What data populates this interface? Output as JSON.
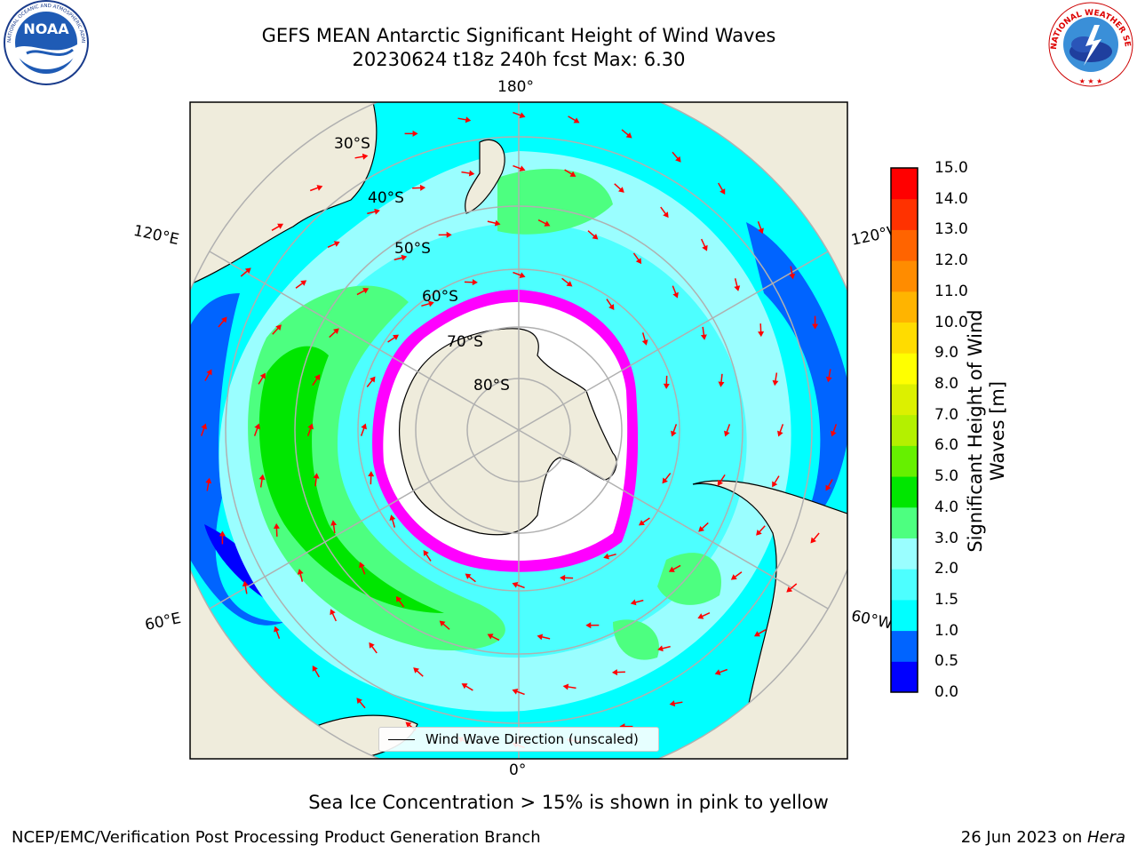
{
  "header": {
    "title_line1": "GEFS MEAN Antarctic Significant Height of Wind Waves",
    "title_line2": "20230624 t18z 240h fcst   Max: 6.30"
  },
  "logos": {
    "noaa_text": "NOAA",
    "noaa_ring_text": "NATIONAL OCEANIC AND ATMOSPHERIC ADMINISTRATION · U.S. DEPARTMENT OF COMMERCE",
    "nws_ring_text": "NATIONAL WEATHER SERVICE"
  },
  "map": {
    "projection": "south polar stereographic",
    "lon_labels": {
      "top": "180°",
      "bottom": "0°",
      "upper_left": "120°E",
      "upper_right": "120°W",
      "lower_left": "60°E",
      "lower_right": "60°W"
    },
    "lat_labels": [
      "30°S",
      "40°S",
      "50°S",
      "60°S",
      "70°S",
      "80°S"
    ],
    "colors": {
      "land": "#efecdc",
      "ocean_calm": "#0000ff",
      "ocean_low": "#00ffff",
      "ocean_mid": "#9afeff",
      "ocean_high": "#00e600",
      "sea_ice": "#ff00ff",
      "arrow": "#ff0000",
      "grid": "#b0b0b0"
    }
  },
  "colorbar": {
    "label": "Significant Height of Wind Waves [m]",
    "ticks": [
      "0.0",
      "0.5",
      "1.0",
      "1.5",
      "2.0",
      "3.0",
      "4.0",
      "5.0",
      "6.0",
      "7.0",
      "8.0",
      "9.0",
      "10.0",
      "11.0",
      "12.0",
      "13.0",
      "14.0",
      "15.0"
    ],
    "colors": [
      "#0000ff",
      "#0064ff",
      "#00ffff",
      "#4dffff",
      "#9afeff",
      "#4dff80",
      "#00e600",
      "#66f000",
      "#b4f000",
      "#dcf000",
      "#ffff00",
      "#ffdc00",
      "#ffb400",
      "#ff8c00",
      "#ff6400",
      "#ff3200",
      "#ff0000"
    ]
  },
  "legend": {
    "label": "Wind Wave Direction (unscaled)"
  },
  "ice_note": "Sea Ice Concentration > 15% is shown in pink to yellow",
  "footer": {
    "left": "NCEP/EMC/Verification Post Processing Product Generation Branch",
    "right_date": "26 Jun 2023 on ",
    "right_host": "Hera"
  }
}
